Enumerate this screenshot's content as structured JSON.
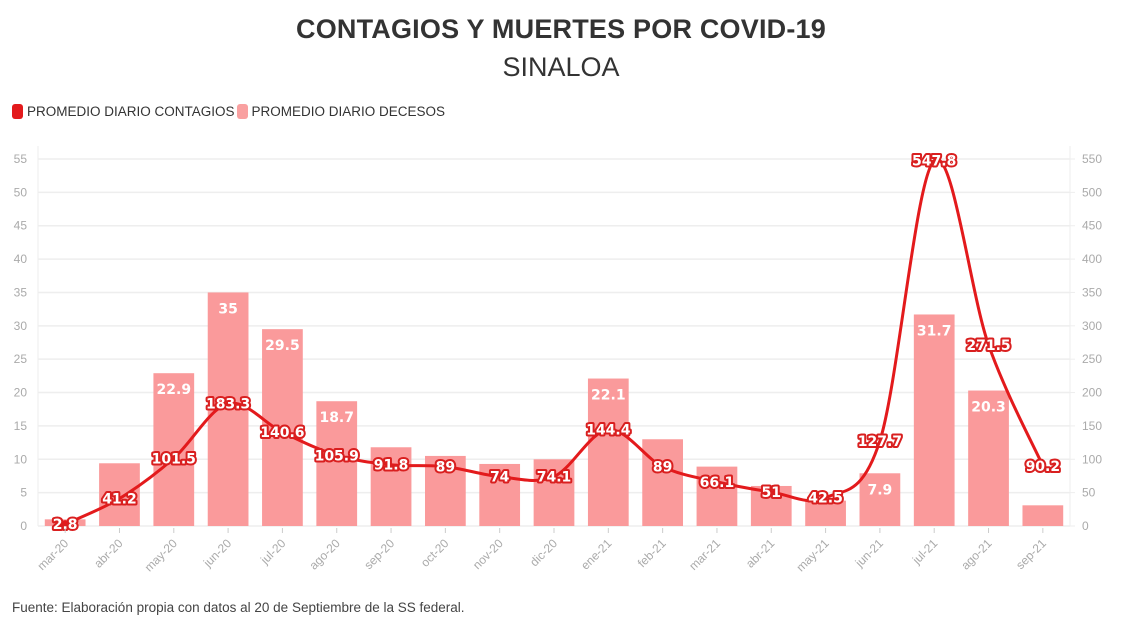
{
  "header": {
    "title": "CONTAGIOS Y MUERTES POR COVID-19",
    "subtitle": "SINALOA"
  },
  "legend": {
    "items": [
      {
        "label": "PROMEDIO DIARIO CONTAGIOS",
        "color": "#e31a1c"
      },
      {
        "label": "PROMEDIO DIARIO DECESOS",
        "color": "#f9a0a0"
      }
    ]
  },
  "footer": {
    "source": "Fuente: Elaboración propia con datos al 20 de Septiembre de la SS federal."
  },
  "colors": {
    "line": "#e31a1c",
    "bar": "#fa9a9b",
    "grid": "#eeeeee",
    "axis_text": "#aaaaaa"
  },
  "chart_data": {
    "type": "bar+line",
    "title": "CONTAGIOS Y MUERTES POR COVID-19",
    "subtitle": "SINALOA",
    "legend_position": "top-left",
    "grid": true,
    "categories": [
      "mar-20",
      "abr-20",
      "may-20",
      "jun-20",
      "jul-20",
      "ago-20",
      "sep-20",
      "oct-20",
      "nov-20",
      "dic-20",
      "ene-21",
      "feb-21",
      "mar-21",
      "abr-21",
      "may-21",
      "jun-21",
      "jul-21",
      "ago-21",
      "sep-21"
    ],
    "left_axis": {
      "ylim": [
        0,
        55
      ],
      "ticks": [
        "0",
        "5",
        "10",
        "15",
        "20",
        "25",
        "30",
        "35",
        "40",
        "45",
        "50",
        "55"
      ]
    },
    "right_axis": {
      "ylim": [
        0,
        550
      ],
      "ticks": [
        "0",
        "50",
        "100",
        "150",
        "200",
        "250",
        "300",
        "350",
        "400",
        "450",
        "500",
        "550"
      ]
    },
    "series": [
      {
        "name": "PROMEDIO DIARIO DECESOS",
        "type": "bar",
        "axis": "left",
        "values": [
          1.0,
          9.4,
          22.9,
          35,
          29.5,
          18.7,
          11.8,
          10.5,
          9.3,
          10.0,
          22.1,
          13.0,
          8.9,
          6.0,
          3.8,
          7.9,
          31.7,
          20.3,
          3.1
        ],
        "labels": [
          "",
          "",
          "22.9",
          "35",
          "29.5",
          "18.7",
          "",
          "",
          "",
          "",
          "22.1",
          "",
          "",
          "",
          "",
          "7.9",
          "31.7",
          "20.3",
          ""
        ]
      },
      {
        "name": "PROMEDIO DIARIO CONTAGIOS",
        "type": "line",
        "axis": "right",
        "values": [
          2.8,
          41.2,
          101.5,
          183.3,
          140.6,
          105.9,
          91.8,
          89,
          74,
          74.1,
          144.4,
          89,
          66.1,
          51,
          42.5,
          127.7,
          547.8,
          271.5,
          90.2
        ],
        "labels": [
          "2.8",
          "41.2",
          "101.5",
          "183.3",
          "140.6",
          "105.9",
          "91.8",
          "89",
          "74",
          "74.1",
          "144.4",
          "89",
          "66.1",
          "51",
          "42.5",
          "127.7",
          "547.8",
          "271.5",
          "90.2"
        ]
      }
    ]
  }
}
